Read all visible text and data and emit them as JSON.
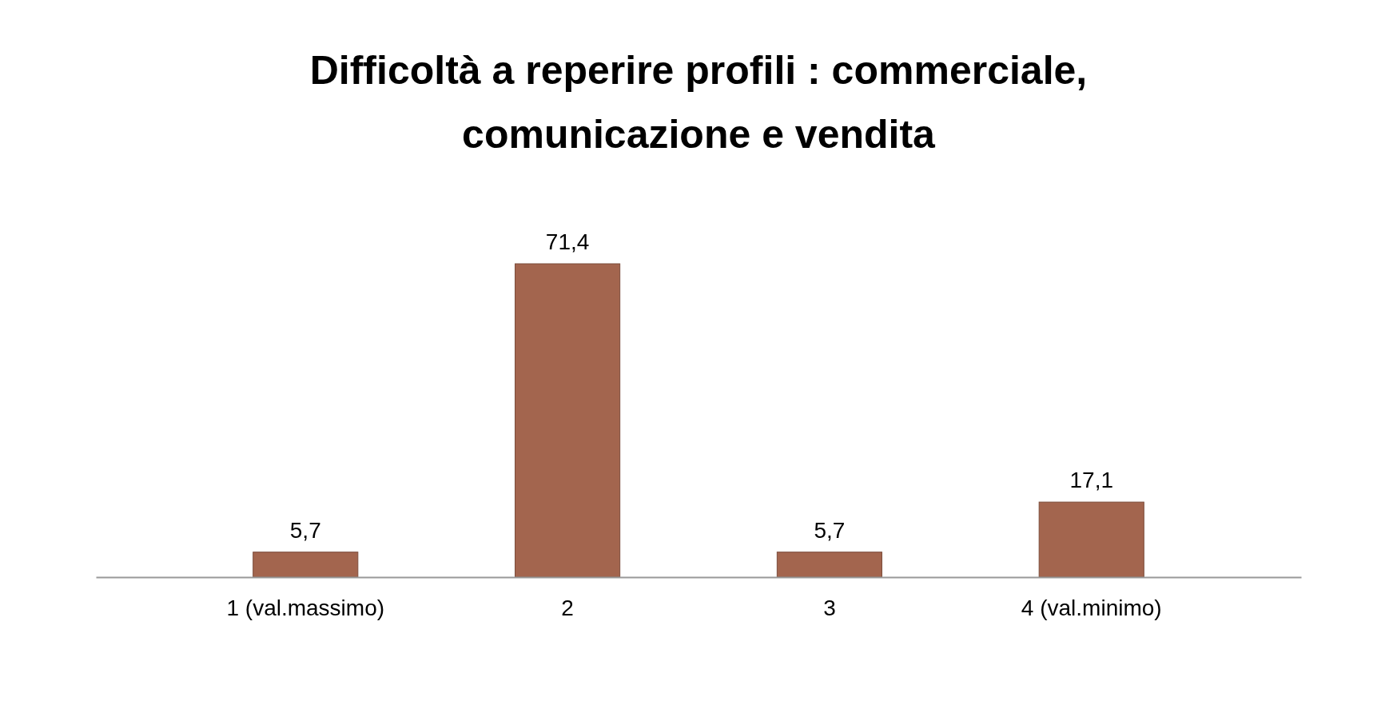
{
  "chart_data": {
    "type": "bar",
    "title": "Difficoltà a reperire profili : commerciale, comunicazione e vendita",
    "categories": [
      "1 (val.massimo)",
      "2",
      "3",
      "4 (val.minimo)"
    ],
    "values": [
      5.7,
      71.4,
      5.7,
      17.1
    ],
    "value_labels": [
      "5,7",
      "71,4",
      "5,7",
      "17,1"
    ],
    "color": "#a3654e"
  }
}
